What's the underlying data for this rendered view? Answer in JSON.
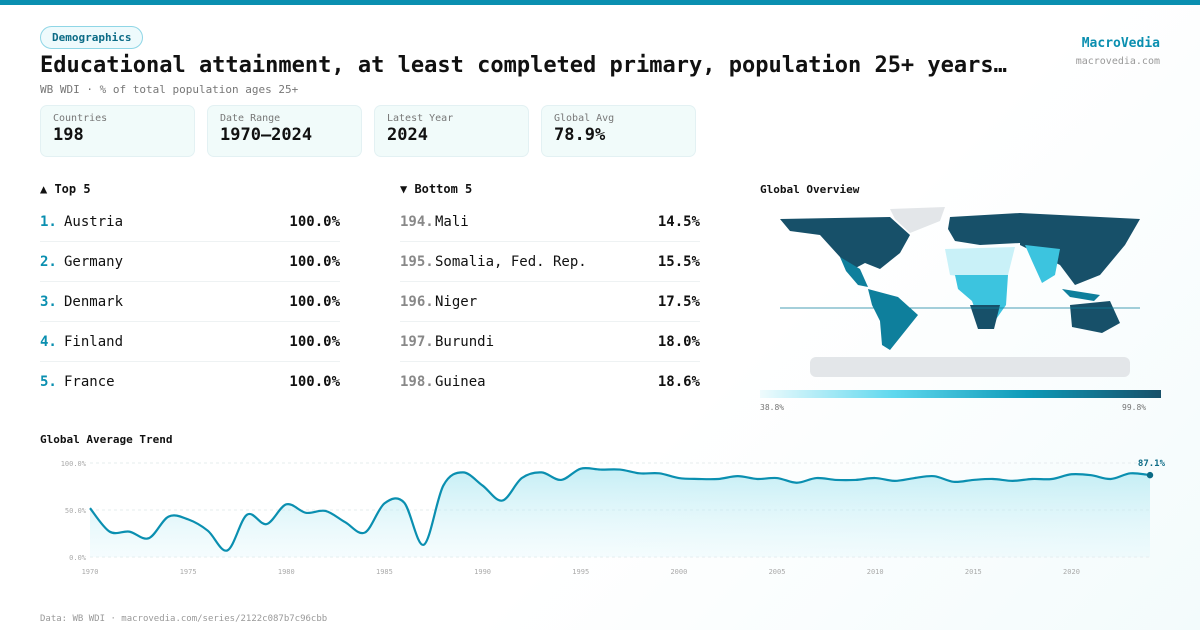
{
  "header": {
    "tag": "Demographics",
    "title": "Educational attainment, at least completed primary, population 25+ years…",
    "subtitle": "WB WDI · % of total population ages 25+",
    "brand": "MacroVedia",
    "brand_url": "macrovedia.com"
  },
  "stats": [
    {
      "label": "Countries",
      "value": "198"
    },
    {
      "label": "Date Range",
      "value": "1970–2024"
    },
    {
      "label": "Latest Year",
      "value": "2024"
    },
    {
      "label": "Global Avg",
      "value": "78.9%"
    }
  ],
  "top5": {
    "title": "▲ Top 5",
    "items": [
      {
        "rank": "1.",
        "name": "Austria",
        "value": "100.0%"
      },
      {
        "rank": "2.",
        "name": "Germany",
        "value": "100.0%"
      },
      {
        "rank": "3.",
        "name": "Denmark",
        "value": "100.0%"
      },
      {
        "rank": "4.",
        "name": "Finland",
        "value": "100.0%"
      },
      {
        "rank": "5.",
        "name": "France",
        "value": "100.0%"
      }
    ]
  },
  "bottom5": {
    "title": "▼ Bottom 5",
    "items": [
      {
        "rank": "194.",
        "name": "Mali",
        "value": "14.5%"
      },
      {
        "rank": "195.",
        "name": "Somalia, Fed. Rep.",
        "value": "15.5%"
      },
      {
        "rank": "196.",
        "name": "Niger",
        "value": "17.5%"
      },
      {
        "rank": "197.",
        "name": "Burundi",
        "value": "18.0%"
      },
      {
        "rank": "198.",
        "name": "Guinea",
        "value": "18.6%"
      }
    ]
  },
  "map": {
    "title": "Global Overview",
    "legend_min": "38.8%",
    "legend_max": "99.8%",
    "colors": [
      "#effbfd",
      "#5fd8ee",
      "#0e9ab8",
      "#175069"
    ]
  },
  "chart_data": {
    "type": "area",
    "title": "Global Average Trend",
    "ylim": [
      0,
      100
    ],
    "yticks": [
      "0.0%",
      "50.0%",
      "100.0%"
    ],
    "xticks": [
      "1970",
      "1975",
      "1980",
      "1985",
      "1990",
      "1995",
      "2000",
      "2005",
      "2010",
      "2015",
      "2020"
    ],
    "x": [
      1970,
      1971,
      1972,
      1973,
      1974,
      1975,
      1976,
      1977,
      1978,
      1979,
      1980,
      1981,
      1982,
      1983,
      1984,
      1985,
      1986,
      1987,
      1988,
      1989,
      1990,
      1991,
      1992,
      1993,
      1994,
      1995,
      1996,
      1997,
      1998,
      1999,
      2000,
      2001,
      2002,
      2003,
      2004,
      2005,
      2006,
      2007,
      2008,
      2009,
      2010,
      2011,
      2012,
      2013,
      2014,
      2015,
      2016,
      2017,
      2018,
      2019,
      2020,
      2021,
      2022,
      2023,
      2024
    ],
    "y": [
      52,
      27,
      27,
      20,
      43,
      40,
      28,
      7,
      45,
      35,
      56,
      47,
      49,
      37,
      26,
      57,
      58,
      13,
      76,
      90,
      76,
      60,
      84,
      90,
      82,
      94,
      93,
      93,
      89,
      89,
      84,
      83,
      83,
      86,
      83,
      84,
      79,
      84,
      82,
      82,
      84,
      81,
      84,
      86,
      80,
      82,
      83,
      81,
      83,
      83,
      88,
      87,
      83,
      89,
      87.1
    ],
    "last_label": "87.1%",
    "color": "#0a8fb0"
  },
  "footer": "Data: WB WDI · macrovedia.com/series/2122c087b7c96cbb"
}
